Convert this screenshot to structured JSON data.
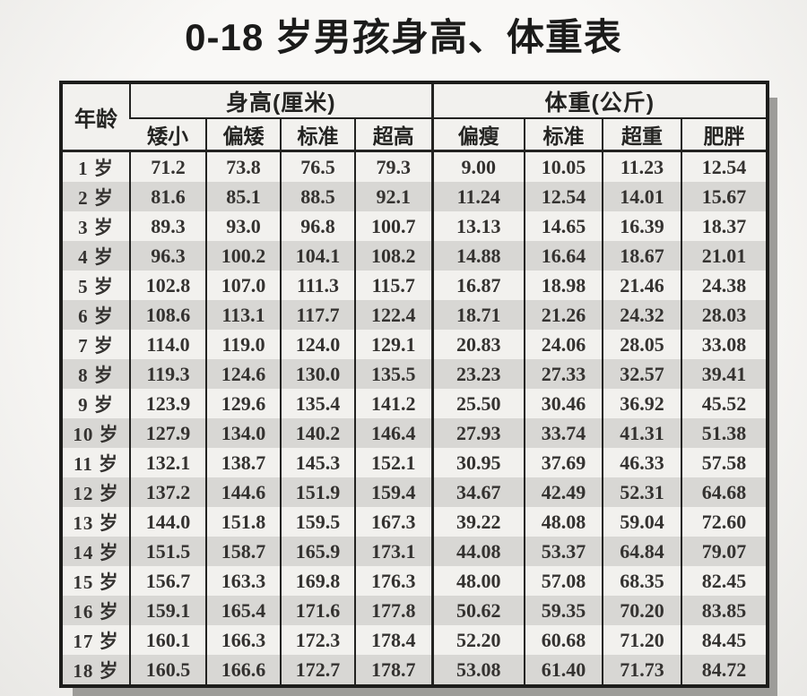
{
  "page": {
    "title": "0-18 岁男孩身高、体重表"
  },
  "table": {
    "age_header": "年龄",
    "height_group": "身高(厘米)",
    "weight_group": "体重(公斤)",
    "height_columns": [
      "矮小",
      "偏矮",
      "标准",
      "超高"
    ],
    "weight_columns": [
      "偏瘦",
      "标准",
      "超重",
      "肥胖"
    ],
    "rows": [
      {
        "age": "1 岁",
        "height": [
          "71.2",
          "73.8",
          "76.5",
          "79.3"
        ],
        "weight": [
          "9.00",
          "10.05",
          "11.23",
          "12.54"
        ]
      },
      {
        "age": "2 岁",
        "height": [
          "81.6",
          "85.1",
          "88.5",
          "92.1"
        ],
        "weight": [
          "11.24",
          "12.54",
          "14.01",
          "15.67"
        ]
      },
      {
        "age": "3 岁",
        "height": [
          "89.3",
          "93.0",
          "96.8",
          "100.7"
        ],
        "weight": [
          "13.13",
          "14.65",
          "16.39",
          "18.37"
        ]
      },
      {
        "age": "4 岁",
        "height": [
          "96.3",
          "100.2",
          "104.1",
          "108.2"
        ],
        "weight": [
          "14.88",
          "16.64",
          "18.67",
          "21.01"
        ]
      },
      {
        "age": "5 岁",
        "height": [
          "102.8",
          "107.0",
          "111.3",
          "115.7"
        ],
        "weight": [
          "16.87",
          "18.98",
          "21.46",
          "24.38"
        ]
      },
      {
        "age": "6 岁",
        "height": [
          "108.6",
          "113.1",
          "117.7",
          "122.4"
        ],
        "weight": [
          "18.71",
          "21.26",
          "24.32",
          "28.03"
        ]
      },
      {
        "age": "7 岁",
        "height": [
          "114.0",
          "119.0",
          "124.0",
          "129.1"
        ],
        "weight": [
          "20.83",
          "24.06",
          "28.05",
          "33.08"
        ]
      },
      {
        "age": "8 岁",
        "height": [
          "119.3",
          "124.6",
          "130.0",
          "135.5"
        ],
        "weight": [
          "23.23",
          "27.33",
          "32.57",
          "39.41"
        ]
      },
      {
        "age": "9 岁",
        "height": [
          "123.9",
          "129.6",
          "135.4",
          "141.2"
        ],
        "weight": [
          "25.50",
          "30.46",
          "36.92",
          "45.52"
        ]
      },
      {
        "age": "10 岁",
        "height": [
          "127.9",
          "134.0",
          "140.2",
          "146.4"
        ],
        "weight": [
          "27.93",
          "33.74",
          "41.31",
          "51.38"
        ]
      },
      {
        "age": "11 岁",
        "height": [
          "132.1",
          "138.7",
          "145.3",
          "152.1"
        ],
        "weight": [
          "30.95",
          "37.69",
          "46.33",
          "57.58"
        ]
      },
      {
        "age": "12 岁",
        "height": [
          "137.2",
          "144.6",
          "151.9",
          "159.4"
        ],
        "weight": [
          "34.67",
          "42.49",
          "52.31",
          "64.68"
        ]
      },
      {
        "age": "13 岁",
        "height": [
          "144.0",
          "151.8",
          "159.5",
          "167.3"
        ],
        "weight": [
          "39.22",
          "48.08",
          "59.04",
          "72.60"
        ]
      },
      {
        "age": "14 岁",
        "height": [
          "151.5",
          "158.7",
          "165.9",
          "173.1"
        ],
        "weight": [
          "44.08",
          "53.37",
          "64.84",
          "79.07"
        ]
      },
      {
        "age": "15 岁",
        "height": [
          "156.7",
          "163.3",
          "169.8",
          "176.3"
        ],
        "weight": [
          "48.00",
          "57.08",
          "68.35",
          "82.45"
        ]
      },
      {
        "age": "16 岁",
        "height": [
          "159.1",
          "165.4",
          "171.6",
          "177.8"
        ],
        "weight": [
          "50.62",
          "59.35",
          "70.20",
          "83.85"
        ]
      },
      {
        "age": "17 岁",
        "height": [
          "160.1",
          "166.3",
          "172.3",
          "178.4"
        ],
        "weight": [
          "52.20",
          "60.68",
          "71.20",
          "84.45"
        ]
      },
      {
        "age": "18 岁",
        "height": [
          "160.5",
          "166.6",
          "172.7",
          "178.7"
        ],
        "weight": [
          "53.08",
          "61.40",
          "71.73",
          "84.72"
        ]
      }
    ]
  },
  "chart_data": {
    "type": "table",
    "title": "0-18 岁男孩身高、体重表",
    "column_groups": [
      {
        "label": "身高(厘米)",
        "columns": [
          "矮小",
          "偏矮",
          "标准",
          "超高"
        ]
      },
      {
        "label": "体重(公斤)",
        "columns": [
          "偏瘦",
          "标准",
          "超重",
          "肥胖"
        ]
      }
    ],
    "columns": [
      "年龄",
      "身高-矮小",
      "身高-偏矮",
      "身高-标准",
      "身高-超高",
      "体重-偏瘦",
      "体重-标准",
      "体重-超重",
      "体重-肥胖"
    ],
    "units": {
      "身高": "厘米",
      "体重": "公斤",
      "年龄": "岁"
    },
    "rows": [
      [
        1,
        71.2,
        73.8,
        76.5,
        79.3,
        9.0,
        10.05,
        11.23,
        12.54
      ],
      [
        2,
        81.6,
        85.1,
        88.5,
        92.1,
        11.24,
        12.54,
        14.01,
        15.67
      ],
      [
        3,
        89.3,
        93.0,
        96.8,
        100.7,
        13.13,
        14.65,
        16.39,
        18.37
      ],
      [
        4,
        96.3,
        100.2,
        104.1,
        108.2,
        14.88,
        16.64,
        18.67,
        21.01
      ],
      [
        5,
        102.8,
        107.0,
        111.3,
        115.7,
        16.87,
        18.98,
        21.46,
        24.38
      ],
      [
        6,
        108.6,
        113.1,
        117.7,
        122.4,
        18.71,
        21.26,
        24.32,
        28.03
      ],
      [
        7,
        114.0,
        119.0,
        124.0,
        129.1,
        20.83,
        24.06,
        28.05,
        33.08
      ],
      [
        8,
        119.3,
        124.6,
        130.0,
        135.5,
        23.23,
        27.33,
        32.57,
        39.41
      ],
      [
        9,
        123.9,
        129.6,
        135.4,
        141.2,
        25.5,
        30.46,
        36.92,
        45.52
      ],
      [
        10,
        127.9,
        134.0,
        140.2,
        146.4,
        27.93,
        33.74,
        41.31,
        51.38
      ],
      [
        11,
        132.1,
        138.7,
        145.3,
        152.1,
        30.95,
        37.69,
        46.33,
        57.58
      ],
      [
        12,
        137.2,
        144.6,
        151.9,
        159.4,
        34.67,
        42.49,
        52.31,
        64.68
      ],
      [
        13,
        144.0,
        151.8,
        159.5,
        167.3,
        39.22,
        48.08,
        59.04,
        72.6
      ],
      [
        14,
        151.5,
        158.7,
        165.9,
        173.1,
        44.08,
        53.37,
        64.84,
        79.07
      ],
      [
        15,
        156.7,
        163.3,
        169.8,
        176.3,
        48.0,
        57.08,
        68.35,
        82.45
      ],
      [
        16,
        159.1,
        165.4,
        171.6,
        177.8,
        50.62,
        59.35,
        70.2,
        83.85
      ],
      [
        17,
        160.1,
        166.3,
        172.3,
        178.4,
        52.2,
        60.68,
        71.2,
        84.45
      ],
      [
        18,
        160.5,
        166.6,
        172.7,
        178.7,
        53.08,
        61.4,
        71.73,
        84.72
      ]
    ]
  }
}
